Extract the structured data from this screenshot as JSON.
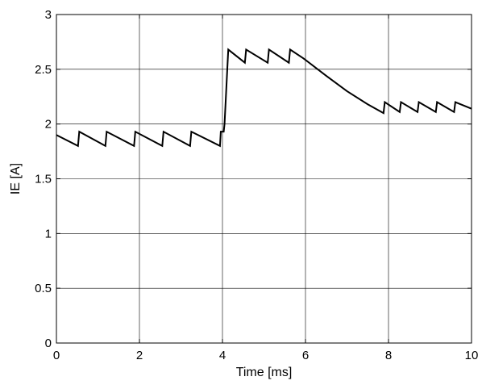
{
  "chart_data": {
    "type": "line",
    "title": "",
    "xlabel": "Time [ms]",
    "ylabel": "IE [A]",
    "xlim": [
      0,
      10
    ],
    "ylim": [
      0,
      3
    ],
    "xticks": [
      0,
      2,
      4,
      6,
      8,
      10
    ],
    "yticks": [
      0,
      0.5,
      1,
      1.5,
      2,
      2.5,
      3
    ],
    "xtick_labels": [
      "0",
      "2",
      "4",
      "6",
      "8",
      "10"
    ],
    "ytick_labels": [
      "0",
      "0.5",
      "1",
      "1.5",
      "2",
      "2.5",
      "3"
    ],
    "grid": true,
    "line_color": "#000000",
    "grid_color": "#000000",
    "series": [
      {
        "x": [
          0.0,
          0.52,
          0.55,
          1.18,
          1.21,
          1.87,
          1.9,
          2.55,
          2.58,
          3.22,
          3.25,
          3.94,
          3.96,
          4.03,
          4.05,
          4.14,
          4.54,
          4.57,
          5.09,
          5.12,
          5.6,
          5.63,
          5.95,
          6.5,
          7.0,
          7.5,
          7.88,
          7.91,
          8.27,
          8.3,
          8.7,
          8.73,
          9.14,
          9.17,
          9.58,
          9.61,
          10.0
        ],
        "y": [
          1.9,
          1.8,
          1.93,
          1.8,
          1.93,
          1.8,
          1.93,
          1.8,
          1.93,
          1.8,
          1.93,
          1.8,
          1.93,
          1.93,
          2.0,
          2.68,
          2.56,
          2.68,
          2.56,
          2.68,
          2.56,
          2.68,
          2.6,
          2.44,
          2.3,
          2.18,
          2.1,
          2.2,
          2.11,
          2.2,
          2.11,
          2.2,
          2.11,
          2.2,
          2.11,
          2.2,
          2.14
        ]
      }
    ]
  }
}
